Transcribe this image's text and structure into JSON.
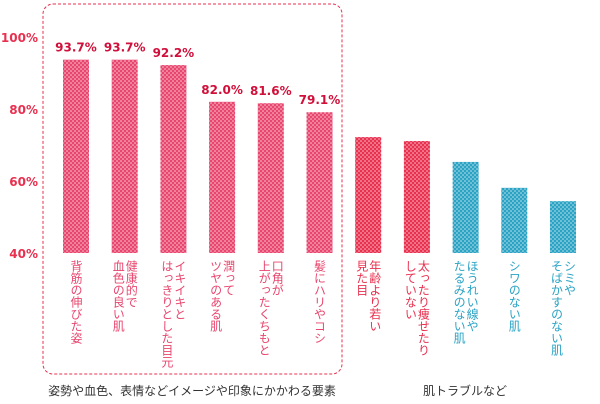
{
  "chart_data": {
    "type": "bar",
    "categories": [
      "背筋の伸びた姿",
      "健康的で\n血色の良い肌",
      "イキイキと\nはっきりとした目元",
      "潤って\nツヤのある肌",
      "口角が\n上がったくちもと",
      "髪にハリやコシ",
      "年齢より若い\n見た目",
      "太ったり痩せたり\nしていない",
      "ほうれい線や\nたるみのない肌",
      "シワのない肌",
      "シミや\nそばかすのない肌"
    ],
    "values": [
      93.7,
      93.7,
      92.2,
      82.0,
      81.6,
      79.1,
      72.2,
      71.1,
      65.3,
      58.1,
      54.4
    ],
    "value_labels": [
      "93.7%",
      "93.7%",
      "92.2%",
      "82.0%",
      "81.6%",
      "79.1%",
      null,
      null,
      null,
      null,
      null
    ],
    "colors": [
      "#e8466e",
      "#e8466e",
      "#e8466e",
      "#e8466e",
      "#e8466e",
      "#e8466e",
      "#e8304f",
      "#e8304f",
      "#2aa3c4",
      "#2aa3c4",
      "#2aa3c4"
    ],
    "ylim": [
      40,
      100
    ],
    "yticks": [
      {
        "value": 40,
        "label": "40%"
      },
      {
        "value": 60,
        "label": "60%"
      },
      {
        "value": 80,
        "label": "80%"
      },
      {
        "value": 100,
        "label": "100%"
      }
    ],
    "annotations": [
      "姿勢や血色、表情などイメージや印象にかかわる要素",
      "肌トラブルなど"
    ]
  }
}
